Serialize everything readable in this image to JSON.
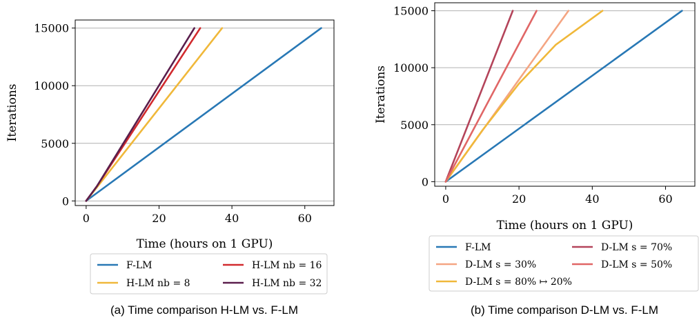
{
  "chart_data": [
    {
      "type": "line",
      "xlabel": "Time (hours on 1 GPU)",
      "ylabel": "Iterations",
      "xlim": [
        -3,
        68
      ],
      "ylim": [
        -400,
        15700
      ],
      "xticks": [
        "0",
        "20",
        "40",
        "60"
      ],
      "yticks": [
        "0",
        "5000",
        "10000",
        "15000"
      ],
      "grid": "horizontal",
      "legend_placement": "below",
      "caption": "(a) Time comparison H-LM vs. F-LM",
      "series": [
        {
          "name": "F-LM",
          "color": "#2878b5",
          "x": [
            0,
            64.5
          ],
          "y": [
            0,
            15000
          ]
        },
        {
          "name": "H-LM nb = 8",
          "color": "#f0b83a",
          "x": [
            0,
            3,
            37.3
          ],
          "y": [
            0,
            1200,
            15000
          ]
        },
        {
          "name": "H-LM nb = 16",
          "color": "#d12a2e",
          "x": [
            0,
            3,
            31.3
          ],
          "y": [
            0,
            1300,
            15000
          ]
        },
        {
          "name": "H-LM nb = 32",
          "color": "#5a1e4c",
          "x": [
            0,
            3,
            29.7
          ],
          "y": [
            0,
            1300,
            15000
          ]
        }
      ]
    },
    {
      "type": "line",
      "xlabel": "Time (hours on 1 GPU)",
      "ylabel": "Iterations",
      "xlim": [
        -3,
        68
      ],
      "ylim": [
        -400,
        15700
      ],
      "xticks": [
        "0",
        "20",
        "40",
        "60"
      ],
      "yticks": [
        "0",
        "5000",
        "10000",
        "15000"
      ],
      "grid": "horizontal",
      "legend_placement": "below",
      "caption": "(b) Time comparison D-LM vs. F-LM",
      "series": [
        {
          "name": "F-LM",
          "color": "#2878b5",
          "x": [
            0,
            64.5
          ],
          "y": [
            0,
            15000
          ]
        },
        {
          "name": "D-LM s = 30%",
          "color": "#f4a582",
          "x": [
            0,
            33.5
          ],
          "y": [
            0,
            15000
          ]
        },
        {
          "name": "D-LM s = 80% ↦ 20%",
          "color": "#f0b83a",
          "x": [
            0,
            10,
            20,
            30,
            42.8
          ],
          "y": [
            0,
            4500,
            8600,
            12000,
            15000
          ]
        },
        {
          "name": "D-LM s = 70%",
          "color": "#b4445a",
          "x": [
            0,
            18.3
          ],
          "y": [
            0,
            15000
          ]
        },
        {
          "name": "D-LM s = 50%",
          "color": "#e06666",
          "x": [
            0,
            24.8
          ],
          "y": [
            0,
            15000
          ]
        }
      ]
    }
  ]
}
